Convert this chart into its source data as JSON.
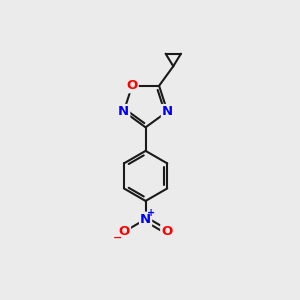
{
  "background_color": "#ebebeb",
  "bond_color": "#1a1a1a",
  "bond_width": 1.5,
  "atom_colors": {
    "O": "#ff0000",
    "N": "#0000ff",
    "C": "#1a1a1a"
  },
  "font_size": 9.5,
  "figsize": [
    3.0,
    3.0
  ],
  "dpi": 100
}
